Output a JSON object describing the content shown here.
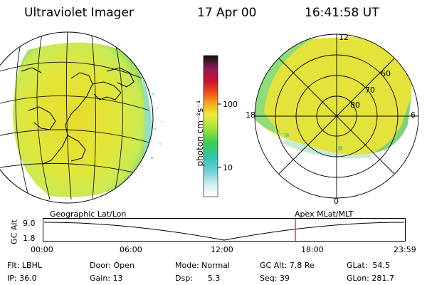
{
  "header": {
    "instrument": "Ultraviolet Imager",
    "date": "17 Apr 00",
    "time": "16:41:58 UT"
  },
  "colorbar": {
    "unit_label": "photon cm⁻²s⁻¹",
    "ticks": [
      "100",
      "10"
    ]
  },
  "polar_plot": {
    "mlt_labels": {
      "top": "12",
      "left": "18",
      "right": "6",
      "bottom": "0"
    },
    "lat_labels": [
      "60",
      "70",
      "80"
    ]
  },
  "timeline": {
    "left_label": "Geographic Lat/Lon",
    "right_label": "Apex  MLat/MLT",
    "axis_title": "GC Alt",
    "y_ticks": [
      "9.0",
      "1.8"
    ],
    "x_ticks": [
      "00:00",
      "06:00",
      "12:00",
      "18:00",
      "23:59"
    ],
    "current_time_fraction": 0.697
  },
  "info": {
    "row1": {
      "flt": "Flt: LBHL",
      "door": "Door: Open",
      "mode": "Mode: Normal",
      "gcalt": "GC Alt: 7.8 Re",
      "glat": "GLat:  54.5"
    },
    "row2": {
      "ip": "IP: 36.0",
      "gain": "Gain: 13",
      "dsp": "Dsp:      5.3",
      "seq": "Seq: 39",
      "glon": "GLon: 281.7"
    }
  },
  "colors": {
    "marker": "#d32020",
    "aurora_main": "#e8e64a",
    "aurora_edge": "#7fd86a"
  }
}
